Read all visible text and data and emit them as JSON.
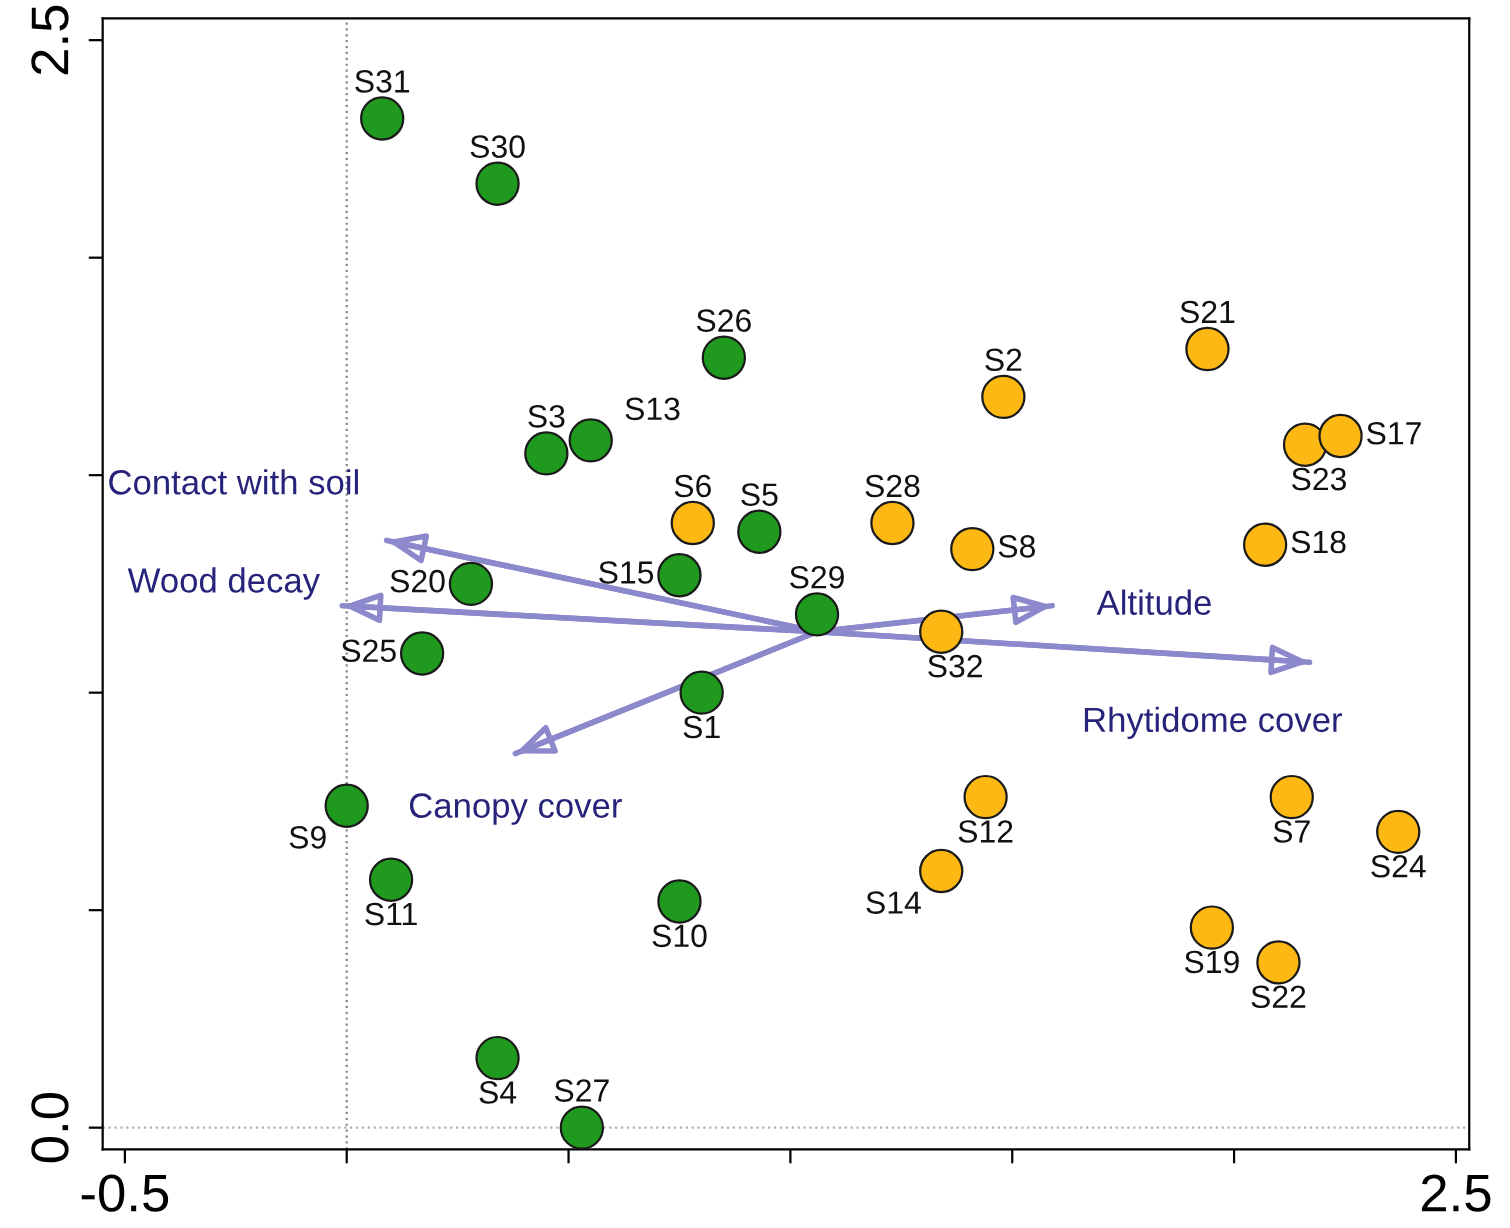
{
  "chart_data": {
    "type": "scatter",
    "marker": "circle",
    "grid": false,
    "xlim": [
      -0.55,
      2.53
    ],
    "ylim": [
      -0.05,
      2.55
    ],
    "xticks": [
      -0.5,
      {
        "value": 0,
        "label": null
      },
      {
        "value": 0.5,
        "label": null
      },
      {
        "value": 1.0,
        "label": null
      },
      {
        "value": 1.5,
        "label": null
      },
      {
        "value": 2.0,
        "label": null
      },
      2.5
    ],
    "yticks": [
      {
        "value": 0,
        "label": "0.0"
      },
      {
        "value": 0.5,
        "label": null
      },
      {
        "value": 1.0,
        "label": null
      },
      {
        "value": 1.5,
        "label": null
      },
      {
        "value": 2.0,
        "label": null
      },
      2.5
    ],
    "ref_lines": [
      {
        "axis": "x",
        "value": 0,
        "color": "#888888",
        "line_style": "dotted"
      },
      {
        "axis": "y",
        "value": 0,
        "color": "#b0b0b0",
        "line_style": "dotted"
      }
    ],
    "series": [
      {
        "color": "#1f9a1f",
        "x": [
          0.08,
          0.34,
          0.85,
          0.45,
          0.55,
          0.75,
          0.93,
          1.06,
          0.28,
          0.17,
          0.8,
          0.0,
          0.1,
          0.75,
          0.34,
          0.53
        ],
        "values": [
          2.32,
          2.17,
          1.77,
          1.55,
          1.58,
          1.27,
          1.37,
          1.18,
          1.25,
          1.09,
          1.0,
          0.74,
          0.57,
          0.52,
          0.16,
          0.0
        ]
      },
      {
        "color": "#fdb813",
        "x": [
          0.78,
          1.48,
          1.94,
          2.16,
          2.24,
          1.23,
          1.41,
          2.07,
          1.34,
          1.44,
          1.34,
          2.13,
          2.37,
          1.95,
          2.1
        ],
        "values": [
          1.39,
          1.68,
          1.79,
          1.57,
          1.59,
          1.39,
          1.33,
          1.34,
          1.14,
          0.76,
          0.59,
          0.76,
          0.68,
          0.46,
          0.38
        ]
      },
      {
        "type": "line",
        "name": "Contact with soil",
        "marker": "none",
        "color": "#8c88cc",
        "x": [
          1.06,
          0.09
        ],
        "values": [
          1.14,
          1.35
        ]
      },
      {
        "type": "line",
        "name": "Wood decay",
        "marker": "none",
        "color": "#8c88cc",
        "x": [
          1.06,
          -0.01
        ],
        "values": [
          1.14,
          1.2
        ]
      },
      {
        "type": "line",
        "name": "Canopy cover",
        "marker": "none",
        "color": "#8c88cc",
        "x": [
          1.06,
          0.38
        ],
        "values": [
          1.14,
          0.86
        ]
      },
      {
        "type": "line",
        "name": "Altitude",
        "marker": "none",
        "color": "#8c88cc",
        "x": [
          1.06,
          1.59
        ],
        "values": [
          1.14,
          1.2
        ]
      },
      {
        "type": "line",
        "name": "Rhytidome cover",
        "marker": "none",
        "color": "#8c88cc",
        "x": [
          1.06,
          2.17
        ],
        "values": [
          1.14,
          1.07
        ]
      }
    ],
    "annotations": [
      {
        "text": "S31",
        "x": 0.08,
        "y": 2.32
      },
      {
        "text": "S30",
        "x": 0.34,
        "y": 2.17
      },
      {
        "text": "S26",
        "x": 0.85,
        "y": 1.77
      },
      {
        "text": "S3",
        "x": 0.45,
        "y": 1.55
      },
      {
        "text": "S13",
        "x": 0.55,
        "y": 1.58
      },
      {
        "text": "S15",
        "x": 0.75,
        "y": 1.27
      },
      {
        "text": "S5",
        "x": 0.93,
        "y": 1.37
      },
      {
        "text": "S29",
        "x": 1.06,
        "y": 1.18
      },
      {
        "text": "S20",
        "x": 0.28,
        "y": 1.25
      },
      {
        "text": "S25",
        "x": 0.17,
        "y": 1.09
      },
      {
        "text": "S1",
        "x": 0.8,
        "y": 1.0
      },
      {
        "text": "S9",
        "x": 0.0,
        "y": 0.74
      },
      {
        "text": "S11",
        "x": 0.1,
        "y": 0.57
      },
      {
        "text": "S10",
        "x": 0.75,
        "y": 0.52
      },
      {
        "text": "S4",
        "x": 0.34,
        "y": 0.16
      },
      {
        "text": "S27",
        "x": 0.53,
        "y": 0.0
      },
      {
        "text": "S6",
        "x": 0.78,
        "y": 1.39
      },
      {
        "text": "S2",
        "x": 1.48,
        "y": 1.68
      },
      {
        "text": "S21",
        "x": 1.94,
        "y": 1.79
      },
      {
        "text": "S23",
        "x": 2.16,
        "y": 1.57
      },
      {
        "text": "S17",
        "x": 2.24,
        "y": 1.59
      },
      {
        "text": "S28",
        "x": 1.23,
        "y": 1.39
      },
      {
        "text": "S8",
        "x": 1.41,
        "y": 1.33
      },
      {
        "text": "S18",
        "x": 2.07,
        "y": 1.34
      },
      {
        "text": "S32",
        "x": 1.34,
        "y": 1.14
      },
      {
        "text": "S12",
        "x": 1.44,
        "y": 0.76
      },
      {
        "text": "S14",
        "x": 1.34,
        "y": 0.59
      },
      {
        "text": "S7",
        "x": 2.13,
        "y": 0.76
      },
      {
        "text": "S24",
        "x": 2.37,
        "y": 0.68
      },
      {
        "text": "S19",
        "x": 1.95,
        "y": 0.46
      },
      {
        "text": "S22",
        "x": 2.1,
        "y": 0.38
      }
    ]
  }
}
